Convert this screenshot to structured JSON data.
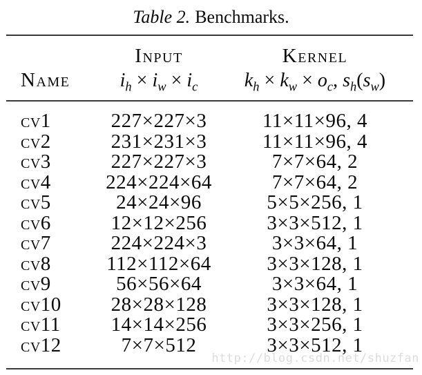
{
  "title": {
    "label_italic": "Table 2.",
    "label_rest": "Benchmarks."
  },
  "table": {
    "header": {
      "name": "Name",
      "input": {
        "title": "Input",
        "formula": [
          {
            "t": "i",
            "s": "var"
          },
          {
            "t": "h",
            "s": "sub"
          },
          {
            "t": " × ",
            "s": "op"
          },
          {
            "t": "i",
            "s": "var"
          },
          {
            "t": "w",
            "s": "sub"
          },
          {
            "t": " × ",
            "s": "op"
          },
          {
            "t": "i",
            "s": "var"
          },
          {
            "t": "c",
            "s": "sub"
          }
        ]
      },
      "kernel": {
        "title": "Kernel",
        "formula": [
          {
            "t": "k",
            "s": "var"
          },
          {
            "t": "h",
            "s": "sub"
          },
          {
            "t": " × ",
            "s": "op"
          },
          {
            "t": "k",
            "s": "var"
          },
          {
            "t": "w",
            "s": "sub"
          },
          {
            "t": " × ",
            "s": "op"
          },
          {
            "t": "o",
            "s": "var"
          },
          {
            "t": "c",
            "s": "sub"
          },
          {
            "t": ", ",
            "s": "op"
          },
          {
            "t": "s",
            "s": "var"
          },
          {
            "t": "h",
            "s": "sub"
          },
          {
            "t": "(",
            "s": "op"
          },
          {
            "t": "s",
            "s": "var"
          },
          {
            "t": "w",
            "s": "sub"
          },
          {
            "t": ")",
            "s": "op"
          }
        ]
      }
    },
    "rows": [
      {
        "name": "cv1",
        "input": "227×227×3",
        "kernel": "11×11×96, 4"
      },
      {
        "name": "cv2",
        "input": "231×231×3",
        "kernel": "11×11×96, 4"
      },
      {
        "name": "cv3",
        "input": "227×227×3",
        "kernel": "7×7×64, 2"
      },
      {
        "name": "cv4",
        "input": "224×224×64",
        "kernel": "7×7×64, 2"
      },
      {
        "name": "cv5",
        "input": "24×24×96",
        "kernel": "5×5×256, 1"
      },
      {
        "name": "cv6",
        "input": "12×12×256",
        "kernel": "3×3×512, 1"
      },
      {
        "name": "cv7",
        "input": "224×224×3",
        "kernel": "3×3×64, 1"
      },
      {
        "name": "cv8",
        "input": "112×112×64",
        "kernel": "3×3×128, 1"
      },
      {
        "name": "cv9",
        "input": "56×56×64",
        "kernel": "3×3×64, 1"
      },
      {
        "name": "cv10",
        "input": "28×28×128",
        "kernel": "3×3×128, 1"
      },
      {
        "name": "cv11",
        "input": "14×14×256",
        "kernel": "3×3×256, 1"
      },
      {
        "name": "cv12",
        "input": "7×7×512",
        "kernel": "3×3×512, 1"
      }
    ]
  },
  "watermark": "http://blog.csdn.net/shuzfan",
  "colors": {
    "background": "#ffffff",
    "text": "#0b0b0b",
    "rule": "#3a3a3a",
    "watermark": "#dcdcdc"
  }
}
